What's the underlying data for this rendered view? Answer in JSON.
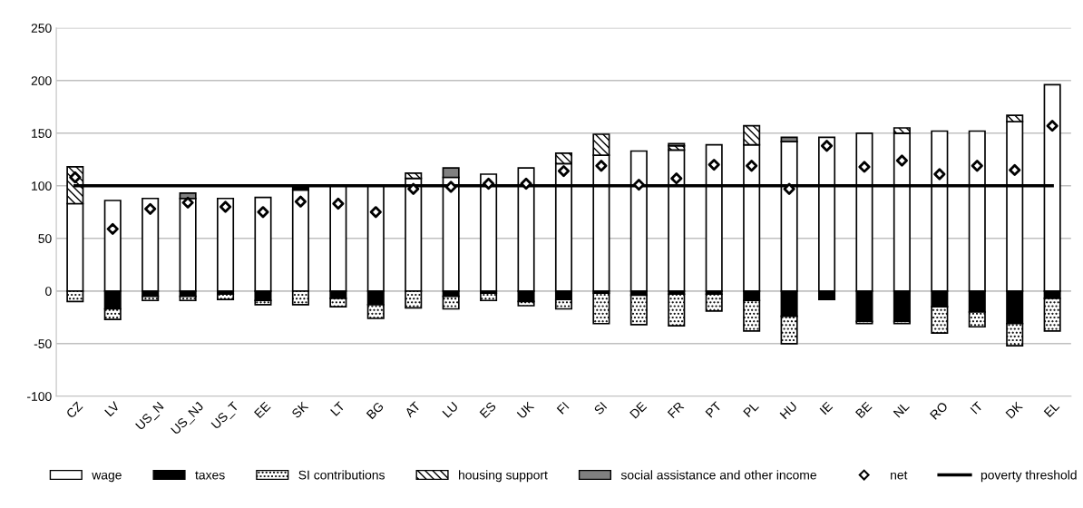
{
  "chart_data": {
    "type": "bar",
    "stacked": true,
    "categories": [
      "CZ",
      "LV",
      "US_N",
      "US_NJ",
      "US_T",
      "EE",
      "SK",
      "LT",
      "BG",
      "AT",
      "LU",
      "ES",
      "UK",
      "FI",
      "SI",
      "DE",
      "FR",
      "PT",
      "PL",
      "HU",
      "IE",
      "BE",
      "NL",
      "RO",
      "IT",
      "DK",
      "EL"
    ],
    "series": [
      {
        "name": "wage",
        "color": "#ffffff",
        "values": [
          83,
          86,
          88,
          88,
          88,
          89,
          96,
          100,
          100,
          107,
          108,
          111,
          117,
          121,
          129,
          133,
          134,
          139,
          139,
          142,
          146,
          150,
          150,
          152,
          152,
          161,
          196
        ]
      },
      {
        "name": "taxes",
        "color": "#000000",
        "values": [
          0,
          -17,
          -5,
          -5,
          -3,
          -9,
          3,
          -7,
          -13,
          0,
          -5,
          -2,
          -10,
          -8,
          -2,
          -4,
          -3,
          -3,
          -9,
          -24,
          -8,
          -29,
          -29,
          -15,
          -20,
          -31,
          -7
        ]
      },
      {
        "name": "SI contributions",
        "color": "#000000",
        "values": [
          -10,
          -10,
          -4,
          -4,
          -5,
          -4,
          -13,
          -8,
          -13,
          -16,
          -12,
          -7,
          -4,
          -9,
          -29,
          -28,
          -30,
          -16,
          -29,
          -26,
          0,
          -2,
          -2,
          -25,
          -14,
          -21,
          -31
        ]
      },
      {
        "name": "housing support",
        "color": "#000000",
        "values": [
          35,
          0,
          0,
          0,
          0,
          0,
          0,
          0,
          0,
          5,
          0,
          0,
          0,
          10,
          20,
          0,
          4,
          0,
          18,
          0,
          0,
          0,
          5,
          0,
          0,
          6,
          0
        ]
      },
      {
        "name": "social assistance and other income",
        "color": "#808080",
        "values": [
          0,
          0,
          0,
          5,
          0,
          0,
          0,
          0,
          0,
          0,
          9,
          0,
          0,
          0,
          0,
          0,
          2,
          0,
          0,
          4,
          0,
          0,
          0,
          0,
          0,
          0,
          0
        ]
      },
      {
        "name": "net",
        "type": "scatter",
        "marker": "diamond",
        "color": "#000000",
        "values": [
          108,
          59,
          78,
          84,
          80,
          75,
          85,
          83,
          75,
          97,
          99,
          102,
          102,
          114,
          119,
          101,
          107,
          120,
          119,
          97,
          138,
          118,
          124,
          111,
          119,
          115,
          157
        ]
      },
      {
        "name": "poverty threshold",
        "type": "line",
        "color": "#000000",
        "values": [
          100,
          100,
          100,
          100,
          100,
          100,
          100,
          100,
          100,
          100,
          100,
          100,
          100,
          100,
          100,
          100,
          100,
          100,
          100,
          100,
          100,
          100,
          100,
          100,
          100,
          100,
          100
        ]
      }
    ],
    "ylim": [
      -100,
      250
    ],
    "yticks": [
      -100,
      -50,
      0,
      50,
      100,
      150,
      200,
      250
    ],
    "grid": "y",
    "legend": "bottom"
  }
}
